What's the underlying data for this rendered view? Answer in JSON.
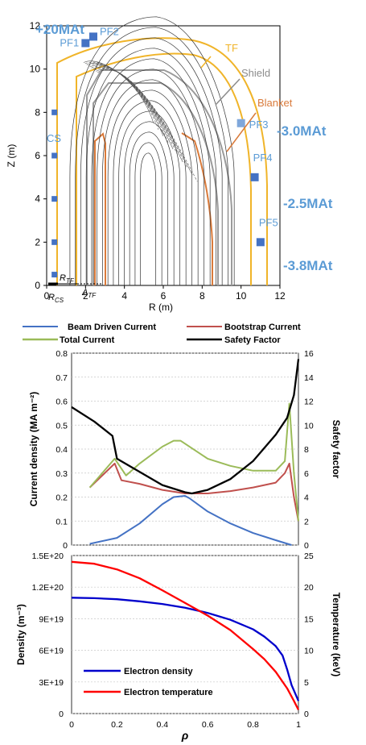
{
  "chart_data": [
    {
      "type": "line",
      "title": "",
      "xlabel": "R (m)",
      "ylabel": "Z (m)",
      "xlim": [
        0,
        12
      ],
      "ylim": [
        0,
        12
      ],
      "x_ticks": [
        "0",
        "2",
        "4",
        "6",
        "8",
        "10",
        "12"
      ],
      "y_ticks": [
        "0",
        "2",
        "4",
        "6",
        "8",
        "10",
        "12"
      ],
      "grid": false,
      "component_labels": [
        {
          "text": "TF",
          "color": "#f0b429"
        },
        {
          "text": "Shield",
          "color": "#8c8c8c"
        },
        {
          "text": "Blanket",
          "color": "#d97a3a"
        }
      ],
      "coils": [
        {
          "name": "PF1",
          "r": 2.0,
          "z": 11.2,
          "current": "+20MAt"
        },
        {
          "name": "PF2",
          "r": 2.4,
          "z": 11.5,
          "current": ""
        },
        {
          "name": "PF3",
          "r": 10.0,
          "z": 7.5,
          "current": "-3.0MAt"
        },
        {
          "name": "PF4",
          "r": 10.7,
          "z": 5.0,
          "current": "-2.5MAt"
        },
        {
          "name": "PF5",
          "r": 11.0,
          "z": 2.0,
          "current": "-3.8MAt"
        },
        {
          "name": "CS",
          "r": 0.4,
          "z": [
            0.5,
            2.0,
            4.0,
            6.0,
            8.0
          ],
          "current": ""
        }
      ],
      "dimension_labels": {
        "cs": "R",
        "cs_sub": "CS",
        "tf": "R",
        "tf_sub": "TF",
        "delta": "Δ",
        "delta_sub": "TF"
      },
      "colors": {
        "coil": "#4472c4",
        "coil_light": "#7fa7db",
        "label": "#5b9bd5"
      }
    },
    {
      "type": "line",
      "xlabel": "",
      "ylabel": "Current density (MA m⁻²)",
      "y2label": "Safety factor",
      "xlim": [
        0,
        1
      ],
      "ylim": [
        0,
        0.8
      ],
      "y2lim": [
        0,
        16
      ],
      "y_ticks": [
        "0",
        "0.1",
        "0.2",
        "0.3",
        "0.4",
        "0.5",
        "0.6",
        "0.7",
        "0.8"
      ],
      "y2_ticks": [
        "0",
        "2",
        "4",
        "6",
        "8",
        "10",
        "12",
        "14",
        "16"
      ],
      "legend_position": "top",
      "series": [
        {
          "name": "Beam Driven Current",
          "color": "#4472c4",
          "axis": "left",
          "x": [
            0.08,
            0.2,
            0.3,
            0.4,
            0.45,
            0.5,
            0.52,
            0.6,
            0.7,
            0.8,
            0.9,
            0.97
          ],
          "y": [
            0.005,
            0.03,
            0.09,
            0.17,
            0.2,
            0.205,
            0.195,
            0.14,
            0.09,
            0.05,
            0.02,
            0.0
          ]
        },
        {
          "name": "Bootstrap Current",
          "color": "#c0504d",
          "axis": "left",
          "x": [
            0.08,
            0.19,
            0.22,
            0.3,
            0.4,
            0.5,
            0.6,
            0.7,
            0.8,
            0.9,
            0.94,
            0.96,
            0.98,
            1.0
          ],
          "y": [
            0.24,
            0.34,
            0.27,
            0.255,
            0.23,
            0.215,
            0.215,
            0.225,
            0.24,
            0.26,
            0.3,
            0.34,
            0.2,
            0.1
          ]
        },
        {
          "name": "Total Current",
          "color": "#9bbb59",
          "axis": "left",
          "x": [
            0.08,
            0.19,
            0.24,
            0.3,
            0.4,
            0.45,
            0.48,
            0.6,
            0.7,
            0.8,
            0.9,
            0.94,
            0.96,
            0.98,
            1.0
          ],
          "y": [
            0.24,
            0.36,
            0.29,
            0.34,
            0.41,
            0.435,
            0.435,
            0.36,
            0.33,
            0.31,
            0.31,
            0.35,
            0.59,
            0.3,
            0.1
          ]
        },
        {
          "name": "Safety Factor",
          "color": "#000000",
          "axis": "right",
          "x": [
            0.0,
            0.1,
            0.18,
            0.2,
            0.3,
            0.4,
            0.5,
            0.53,
            0.6,
            0.7,
            0.8,
            0.9,
            0.95,
            0.98,
            1.0
          ],
          "y": [
            11.5,
            10.3,
            9.1,
            7.2,
            6.1,
            5.0,
            4.4,
            4.3,
            4.6,
            5.5,
            7.0,
            9.2,
            10.6,
            12.5,
            15.5
          ]
        }
      ]
    },
    {
      "type": "line",
      "xlabel": "ρ",
      "ylabel": "Density (m⁻³)",
      "y2label": "Temperature (keV)",
      "xlim": [
        0,
        1
      ],
      "ylim": [
        0,
        1.5e+20
      ],
      "y2lim": [
        0,
        25
      ],
      "x_ticks": [
        "0",
        "0.2",
        "0.4",
        "0.6",
        "0.8",
        "1"
      ],
      "y_ticks": [
        "0",
        "3E+19",
        "6E+19",
        "9E+19",
        "1.2E+20",
        "1.5E+20"
      ],
      "y2_ticks": [
        "0",
        "5",
        "10",
        "15",
        "20",
        "25"
      ],
      "legend_position": "bottom-left",
      "series": [
        {
          "name": "Electron density",
          "color": "#0000cc",
          "axis": "left",
          "x": [
            0,
            0.1,
            0.2,
            0.3,
            0.4,
            0.5,
            0.6,
            0.7,
            0.8,
            0.85,
            0.9,
            0.93,
            0.95,
            0.97,
            1.0
          ],
          "y": [
            1.1e+20,
            1.095e+20,
            1.085e+20,
            1.065e+20,
            1.04e+20,
            1.005e+20,
            9.55e+19,
            8.9e+19,
            8e+19,
            7.3e+19,
            6.4e+19,
            5.5e+19,
            4.2e+19,
            2.7e+19,
            1.2e+19
          ]
        },
        {
          "name": "Electron temperature",
          "color": "#ff0000",
          "axis": "right",
          "x": [
            0,
            0.1,
            0.2,
            0.3,
            0.4,
            0.5,
            0.6,
            0.7,
            0.8,
            0.85,
            0.9,
            0.95,
            0.98,
            1.0
          ],
          "y": [
            24.0,
            23.7,
            22.8,
            21.4,
            19.5,
            17.5,
            15.5,
            13.2,
            10.2,
            8.6,
            6.6,
            4.0,
            2.0,
            0.6
          ]
        }
      ]
    }
  ]
}
